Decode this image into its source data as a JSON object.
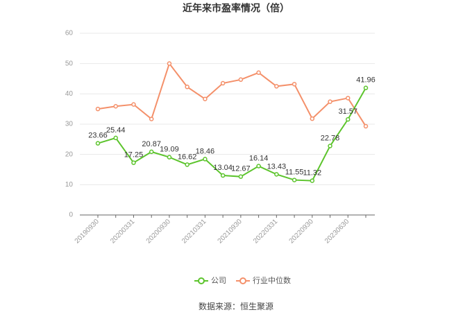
{
  "chart_data": {
    "type": "line",
    "title": "近年来市盈率情况（倍）",
    "source": "数据来源：恒生聚源",
    "categories": [
      "20190930",
      null,
      "20200331",
      null,
      "20200930",
      null,
      "20210331",
      null,
      "20210930",
      null,
      "20220331",
      null,
      "20220930",
      null,
      "20230630",
      null
    ],
    "series": [
      {
        "name": "公司",
        "color": "#5cc42c",
        "labels": true,
        "values": [
          23.66,
          25.44,
          17.25,
          20.87,
          19.09,
          16.62,
          18.46,
          13.04,
          12.67,
          16.14,
          13.43,
          11.55,
          11.32,
          22.78,
          31.57,
          41.96
        ]
      },
      {
        "name": "行业中位数",
        "color": "#f4906a",
        "labels": false,
        "values": [
          35.0,
          35.9,
          36.5,
          31.7,
          50.0,
          42.3,
          38.3,
          43.5,
          44.7,
          47.0,
          42.5,
          43.2,
          31.8,
          37.4,
          38.6,
          29.3
        ]
      }
    ],
    "ylim": [
      0,
      60
    ],
    "yticks": [
      0,
      10,
      20,
      30,
      40,
      50,
      60
    ],
    "grid": true,
    "legend": "bottom"
  }
}
